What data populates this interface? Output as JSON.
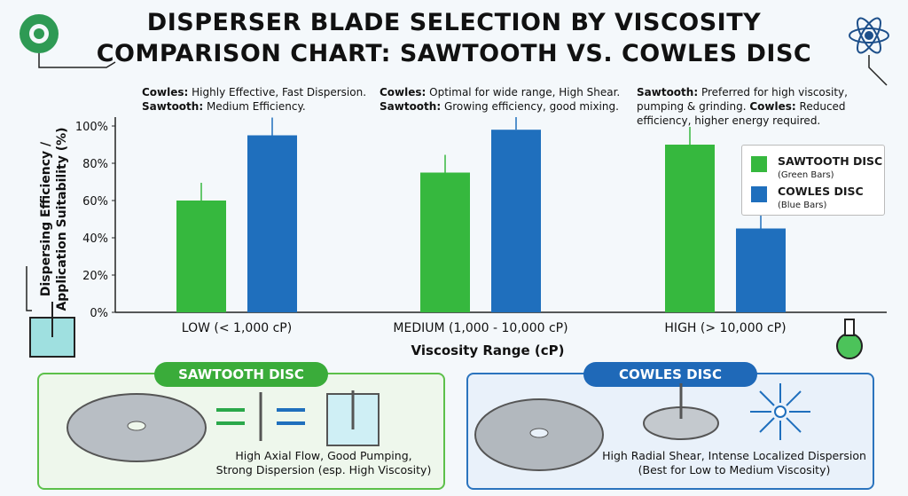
{
  "title_line1": "DISPERSER BLADE SELECTION BY VISCOSITY",
  "title_line2": "COMPARISON CHART: SAWTOOTH VS. COWLES DISC",
  "annotations": [
    {
      "lines": [
        {
          "label": "Cowles:",
          "text": " Highly Effective, Fast Dispersion."
        },
        {
          "label": "Sawtooth:",
          "text": " Medium Efficiency."
        }
      ]
    },
    {
      "lines": [
        {
          "label": "Cowles:",
          "text": " Optimal for wide range, High Shear."
        },
        {
          "label": "Sawtooth:",
          "text": " Growing efficiency, good mixing."
        }
      ]
    },
    {
      "lines": [
        {
          "label": "Sawtooth:",
          "text": " Preferred for high viscosity,"
        },
        {
          "label": "",
          "text": "pumping & grinding. "
        },
        {
          "label": "",
          "text": "efficiency, higher energy required."
        }
      ],
      "inline_label": "Cowles:",
      "inline_text": " Reduced"
    }
  ],
  "legend": {
    "sawtooth_name": "SAWTOOTH DISC",
    "sawtooth_sub": "(Green Bars)",
    "cowles_name": "COWLES DISC",
    "cowles_sub": "(Blue Bars)"
  },
  "colors": {
    "sawtooth": "#36b83e",
    "cowles": "#1f6fbd"
  },
  "chart_data": {
    "type": "bar",
    "categories": [
      "LOW (< 1,000 cP)",
      "MEDIUM (1,000 - 10,000 cP)",
      "HIGH (> 10,000 cP)"
    ],
    "series": [
      {
        "name": "SAWTOOTH DISC",
        "values": [
          60,
          75,
          90
        ]
      },
      {
        "name": "COWLES DISC",
        "values": [
          95,
          98,
          45
        ]
      }
    ],
    "xlabel": "Viscosity Range (cP)",
    "ylabel_line1": "Dispersing Efficiency /",
    "ylabel_line2": "Application Suitability (%)",
    "ylim": [
      0,
      100
    ],
    "yticks": [
      "0%",
      "20%",
      "40%",
      "60%",
      "80%",
      "100%"
    ],
    "grid": false,
    "legend_position": "right"
  },
  "sawtooth_panel": {
    "tab": "SAWTOOTH DISC",
    "caption_line1": "High Axial Flow, Good Pumping,",
    "caption_line2": "Strong Dispersion (esp. High Viscosity)"
  },
  "cowles_panel": {
    "tab": "COWLES DISC",
    "caption_line1": "High Radial Shear, Intense Localized Dispersion",
    "caption_line2": "(Best for Low to Medium Viscosity)"
  }
}
